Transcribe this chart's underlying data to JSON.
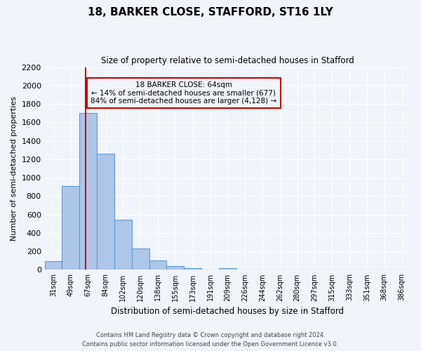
{
  "title": "18, BARKER CLOSE, STAFFORD, ST16 1LY",
  "subtitle": "Size of property relative to semi-detached houses in Stafford",
  "xlabel": "Distribution of semi-detached houses by size in Stafford",
  "ylabel": "Number of semi-detached properties",
  "footnote1": "Contains HM Land Registry data © Crown copyright and database right 2024.",
  "footnote2": "Contains public sector information licensed under the Open Government Licence v3.0.",
  "bar_labels": [
    "31sqm",
    "49sqm",
    "67sqm",
    "84sqm",
    "102sqm",
    "120sqm",
    "138sqm",
    "155sqm",
    "173sqm",
    "191sqm",
    "209sqm",
    "226sqm",
    "244sqm",
    "262sqm",
    "280sqm",
    "297sqm",
    "315sqm",
    "333sqm",
    "351sqm",
    "368sqm",
    "386sqm"
  ],
  "bar_values": [
    95,
    910,
    1700,
    1260,
    545,
    235,
    105,
    40,
    20,
    0,
    20,
    0,
    0,
    0,
    0,
    0,
    0,
    0,
    0,
    0,
    0
  ],
  "bar_color": "#aec6e8",
  "bar_edge_color": "#5b9bd5",
  "vline_color": "#cc0000",
  "annotation_title": "18 BARKER CLOSE: 64sqm",
  "annotation_line1": "← 14% of semi-detached houses are smaller (677)",
  "annotation_line2": "84% of semi-detached houses are larger (4,128) →",
  "ylim": [
    0,
    2200
  ],
  "yticks": [
    0,
    200,
    400,
    600,
    800,
    1000,
    1200,
    1400,
    1600,
    1800,
    2000,
    2200
  ],
  "bg_color": "#f0f4fb",
  "grid_color": "#ffffff",
  "bar_width": 1.0,
  "vline_pos": 1.83
}
